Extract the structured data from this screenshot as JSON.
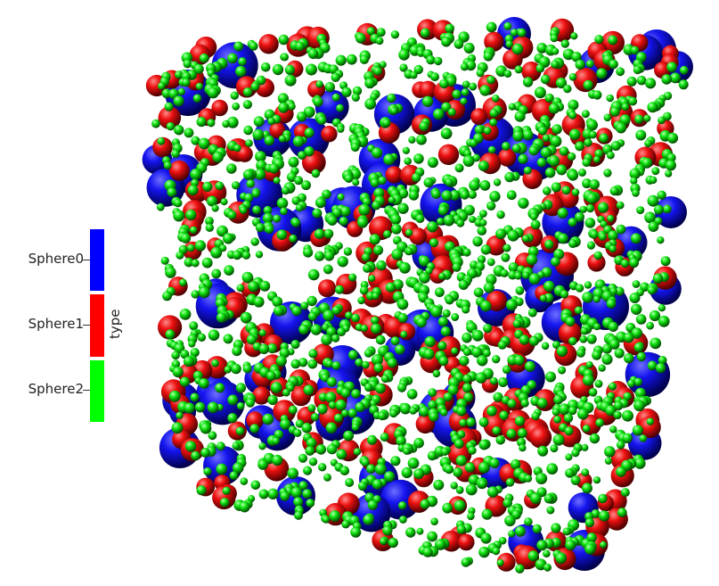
{
  "legend": {
    "title": "type",
    "items": [
      {
        "label": "Sphere0",
        "color": "#0000ff"
      },
      {
        "label": "Sphere1",
        "color": "#ff0000"
      },
      {
        "label": "Sphere2",
        "color": "#00ff00"
      }
    ]
  },
  "colors": {
    "background": "#ffffff",
    "sphere0": "#0000ff",
    "sphere1": "#ff0000",
    "sphere2": "#00ff00"
  }
}
